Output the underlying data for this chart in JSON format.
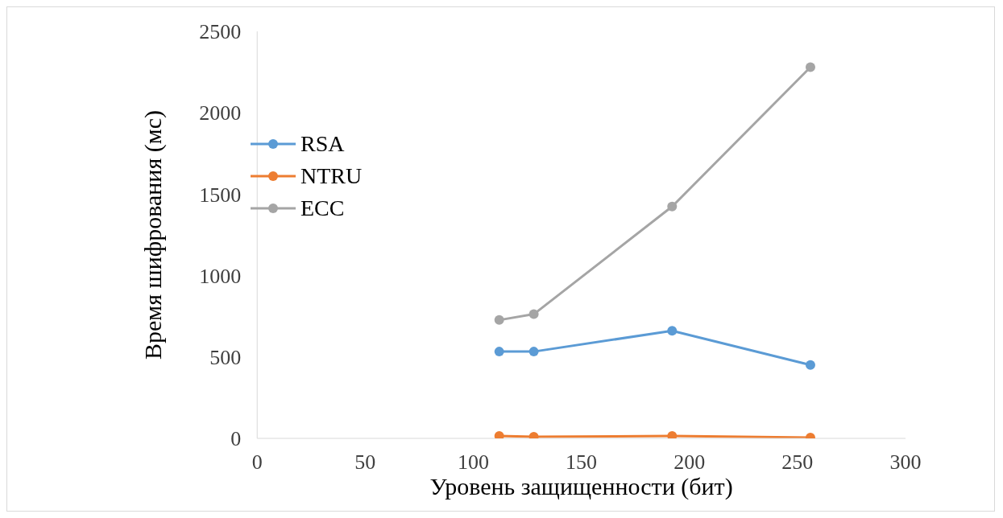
{
  "chart_data": {
    "type": "line",
    "xlabel": "Уровень защищенности (бит)",
    "ylabel": "Время шифрования (мс)",
    "x": [
      112,
      128,
      192,
      256
    ],
    "series": [
      {
        "name": "RSA",
        "color": "#5b9bd5",
        "values": [
          533,
          533,
          661,
          451
        ]
      },
      {
        "name": "NTRU",
        "color": "#ed7d31",
        "values": [
          15,
          10,
          15,
          5
        ]
      },
      {
        "name": "ECC",
        "color": "#a5a5a5",
        "values": [
          727,
          763,
          1424,
          2280
        ]
      }
    ],
    "xlim": [
      0,
      300
    ],
    "xticks": [
      0,
      50,
      100,
      150,
      200,
      250,
      300
    ],
    "ylim": [
      0,
      2500
    ],
    "yticks": [
      0,
      500,
      1000,
      1500,
      2000,
      2500
    ],
    "grid": false,
    "legend": "top left",
    "marker": "circle",
    "line_style": "solid"
  }
}
